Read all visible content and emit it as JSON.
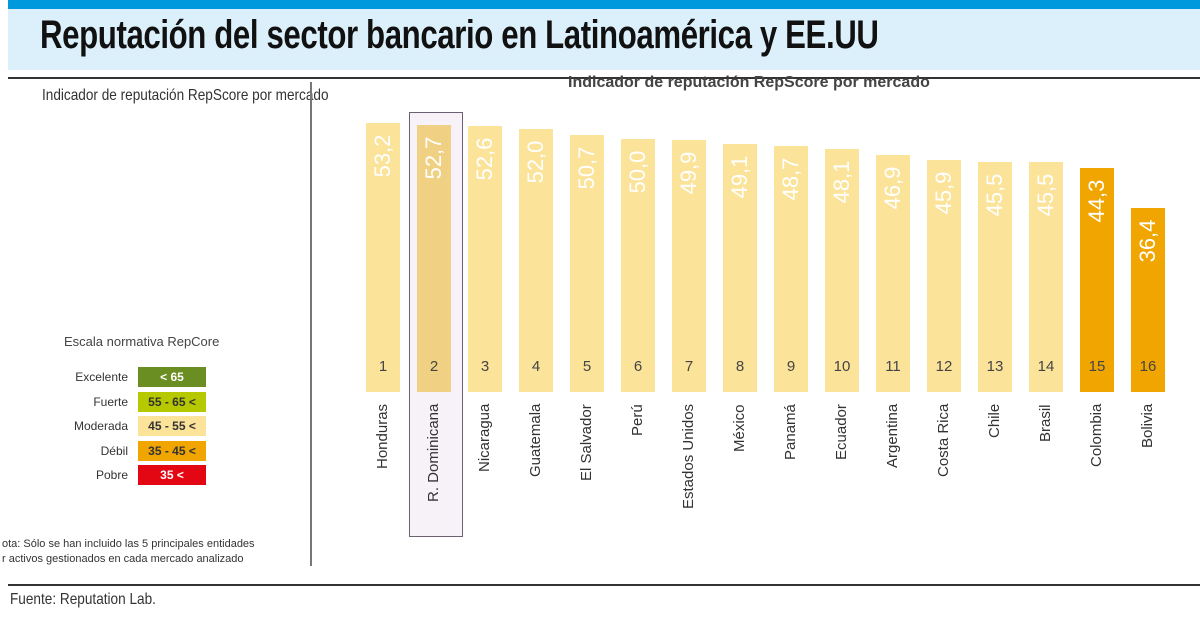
{
  "header": {
    "title": "Reputación del sector bancario en Latinoamérica y EE.UU",
    "subtitle": "Indicador de reputación RepScore por mercado"
  },
  "source": "Fuente: Reputation Lab.",
  "scale": {
    "title": "Escala normativa RepCore",
    "rows": [
      {
        "label": "Excelente",
        "range": "< 65",
        "color": "#6b8e23",
        "text_color": "#ffffff"
      },
      {
        "label": "Fuerte",
        "range": "55 - 65 <",
        "color": "#b5c800",
        "text_color": "#333333"
      },
      {
        "label": "Moderada",
        "range": "45 - 55 <",
        "color": "#fbe39a",
        "text_color": "#333333"
      },
      {
        "label": "Débil",
        "range": "35 - 45 <",
        "color": "#f0a500",
        "text_color": "#333333"
      },
      {
        "label": "Pobre",
        "range": "35 <",
        "color": "#e30613",
        "text_color": "#ffffff"
      }
    ]
  },
  "note": {
    "line1": "ota: Sólo se han incluido las 5 principales entidades",
    "line2": "r activos gestionados en cada mercado analizado"
  },
  "chart_data": {
    "type": "bar",
    "title": "Indicador de reputación RepScore por mercado",
    "categories": [
      "Honduras",
      "R. Dominicana",
      "Nicaragua",
      "Guatemala",
      "El Salvador",
      "Perú",
      "Estados Unidos",
      "México",
      "Panamá",
      "Ecuador",
      "Argentina",
      "Costa Rica",
      "Chile",
      "Brasil",
      "Colombia",
      "Bolivia"
    ],
    "values": [
      53.2,
      52.7,
      52.6,
      52.0,
      50.7,
      50.0,
      49.9,
      49.1,
      48.7,
      48.1,
      46.9,
      45.9,
      45.5,
      45.5,
      44.3,
      36.4
    ],
    "value_labels": [
      "53,2",
      "52,7",
      "52,6",
      "52,0",
      "50,7",
      "50,0",
      "49,9",
      "49,1",
      "48,7",
      "48,1",
      "46,9",
      "45,9",
      "45,5",
      "45,5",
      "44,3",
      "36,4"
    ],
    "ranks": [
      "1",
      "2",
      "3",
      "4",
      "5",
      "6",
      "7",
      "8",
      "9",
      "10",
      "11",
      "12",
      "13",
      "14",
      "15",
      "16"
    ],
    "highlight": "R. Dominicana",
    "colors": {
      "moderada": "#fbe39a",
      "highlight": "#f0d184",
      "debil": "#f0a500"
    },
    "ylim": [
      0,
      55
    ],
    "grid": false,
    "legend": "none"
  }
}
